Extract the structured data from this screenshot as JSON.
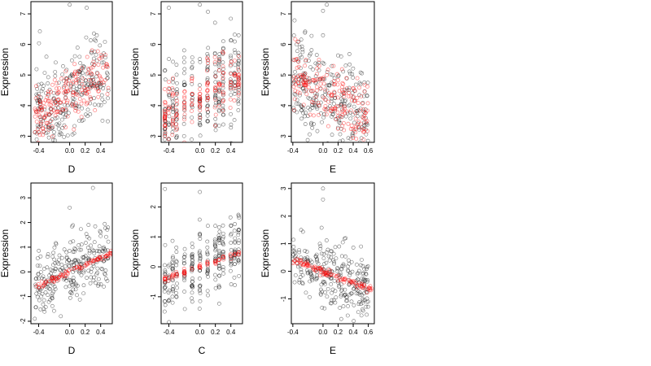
{
  "chart_data": [
    {
      "type": "scatter",
      "panel": "top-left",
      "xlabel": "D",
      "ylabel": "Expression",
      "xlim": [
        -0.5,
        0.55
      ],
      "ylim": [
        2.8,
        7.4
      ],
      "xticks": [
        -0.4,
        0.0,
        0.2,
        0.4
      ],
      "xtick_labels": [
        "-0.4",
        "0.0",
        "0.2",
        "0.4"
      ],
      "yticks": [
        3,
        4,
        5,
        6,
        7
      ],
      "ytick_labels": [
        "3",
        "4",
        "5",
        "6",
        "7"
      ],
      "series": [
        {
          "role": "observed",
          "color": "#000000",
          "x_range": [
            -0.45,
            0.5
          ],
          "pattern": "linear-spread",
          "slope": 1.4,
          "intercept": 4.3,
          "spread": 0.75,
          "count": 260,
          "seed": 11,
          "outliers": [
            [
              0.0,
              7.3
            ],
            [
              0.22,
              7.2
            ],
            [
              0.35,
              6.3
            ],
            [
              -0.3,
              5.6
            ]
          ]
        },
        {
          "role": "fitted",
          "color": "#ff0000",
          "x_range": [
            -0.45,
            0.5
          ],
          "pattern": "linear-spread",
          "slope": 1.4,
          "intercept": 4.3,
          "spread": 0.5,
          "count": 190,
          "seed": 12
        }
      ]
    },
    {
      "type": "scatter",
      "panel": "top-middle",
      "xlabel": "C",
      "ylabel": "Expression",
      "xlim": [
        -0.5,
        0.55
      ],
      "ylim": [
        2.8,
        7.4
      ],
      "xticks": [
        -0.4,
        0.0,
        0.2,
        0.4
      ],
      "xtick_labels": [
        "-0.4",
        "0.0",
        "0.2",
        "0.4"
      ],
      "yticks": [
        3,
        4,
        5,
        6,
        7
      ],
      "ytick_labels": [
        "3",
        "4",
        "5",
        "6",
        "7"
      ],
      "series": [
        {
          "role": "observed",
          "color": "#000000",
          "x_columns": [
            -0.45,
            -0.4,
            -0.35,
            -0.3,
            -0.2,
            -0.1,
            0.0,
            0.1,
            0.2,
            0.25,
            0.3,
            0.4,
            0.45,
            0.5
          ],
          "pattern": "columns",
          "slope": 1.2,
          "intercept": 4.3,
          "spread": 0.8,
          "count": 260,
          "seed": 21,
          "outliers": [
            [
              -0.4,
              7.2
            ],
            [
              0.0,
              7.3
            ],
            [
              0.5,
              6.3
            ]
          ]
        },
        {
          "role": "fitted",
          "color": "#ff0000",
          "x_columns": [
            -0.45,
            -0.4,
            -0.35,
            -0.3,
            -0.2,
            -0.1,
            0.0,
            0.1,
            0.2,
            0.25,
            0.3,
            0.4,
            0.45,
            0.5
          ],
          "pattern": "columns",
          "slope": 1.2,
          "intercept": 4.3,
          "spread": 0.45,
          "count": 170,
          "seed": 22
        }
      ]
    },
    {
      "type": "scatter",
      "panel": "top-right",
      "xlabel": "E",
      "ylabel": "Expression",
      "xlim": [
        -0.42,
        0.68
      ],
      "ylim": [
        2.8,
        7.4
      ],
      "xticks": [
        -0.4,
        0.0,
        0.2,
        0.4,
        0.6
      ],
      "xtick_labels": [
        "-0.4",
        "0.0",
        "0.2",
        "0.4",
        "0.6"
      ],
      "yticks": [
        3,
        4,
        5,
        6,
        7
      ],
      "ytick_labels": [
        "3",
        "4",
        "5",
        "6",
        "7"
      ],
      "series": [
        {
          "role": "observed",
          "color": "#000000",
          "x_range": [
            -0.4,
            0.6
          ],
          "pattern": "linear-spread",
          "slope": -1.3,
          "intercept": 4.4,
          "spread": 0.8,
          "count": 260,
          "seed": 31,
          "outliers": [
            [
              0.05,
              7.3
            ],
            [
              0.0,
              7.1
            ],
            [
              0.0,
              6.3
            ],
            [
              -0.35,
              6.0
            ]
          ]
        },
        {
          "role": "fitted",
          "color": "#ff0000",
          "x_range": [
            -0.4,
            0.6
          ],
          "pattern": "linear-spread",
          "slope": -1.3,
          "intercept": 4.4,
          "spread": 0.55,
          "count": 190,
          "seed": 32
        }
      ]
    },
    {
      "type": "scatter",
      "panel": "bottom-left",
      "xlabel": "D",
      "ylabel": "Expression",
      "xlim": [
        -0.5,
        0.55
      ],
      "ylim": [
        -2.1,
        3.6
      ],
      "xticks": [
        -0.4,
        0.0,
        0.2,
        0.4
      ],
      "xtick_labels": [
        "-0.4",
        "0.0",
        "0.2",
        "0.4"
      ],
      "yticks": [
        -2,
        -1,
        0,
        1,
        2,
        3
      ],
      "ytick_labels": [
        "-2",
        "-1",
        "0",
        "1",
        "2",
        "3"
      ],
      "series": [
        {
          "role": "observed",
          "color": "#000000",
          "x_range": [
            -0.45,
            0.5
          ],
          "pattern": "linear-spread",
          "slope": 1.4,
          "intercept": 0.0,
          "spread": 0.7,
          "count": 260,
          "seed": 41,
          "outliers": [
            [
              0.3,
              3.4
            ],
            [
              0.0,
              2.6
            ],
            [
              0.4,
              1.6
            ],
            [
              -0.45,
              -1.9
            ]
          ]
        },
        {
          "role": "fitted",
          "color": "#ff0000",
          "x_range": [
            -0.45,
            0.55
          ],
          "pattern": "line",
          "slope": 1.4,
          "intercept": 0.0,
          "spread": 0.06,
          "count": 90,
          "seed": 42
        }
      ]
    },
    {
      "type": "scatter",
      "panel": "bottom-middle",
      "xlabel": "C",
      "ylabel": "Expression",
      "xlim": [
        -0.5,
        0.55
      ],
      "ylim": [
        -1.9,
        2.8
      ],
      "xticks": [
        -0.4,
        0.0,
        0.2,
        0.4
      ],
      "xtick_labels": [
        "-0.4",
        "0.0",
        "0.2",
        "0.4"
      ],
      "yticks": [
        -1,
        0,
        1,
        2
      ],
      "ytick_labels": [
        "-1",
        "0",
        "1",
        "2"
      ],
      "series": [
        {
          "role": "observed",
          "color": "#000000",
          "x_columns": [
            -0.45,
            -0.4,
            -0.35,
            -0.3,
            -0.2,
            -0.1,
            0.0,
            0.1,
            0.2,
            0.25,
            0.3,
            0.4,
            0.45,
            0.5
          ],
          "pattern": "columns",
          "slope": 0.9,
          "intercept": 0.0,
          "spread": 0.6,
          "count": 260,
          "seed": 51,
          "outliers": [
            [
              -0.45,
              2.6
            ],
            [
              0.0,
              2.5
            ],
            [
              0.5,
              1.7
            ]
          ]
        },
        {
          "role": "fitted",
          "color": "#ff0000",
          "x_columns": [
            -0.45,
            -0.4,
            -0.35,
            -0.3,
            -0.2,
            -0.1,
            0.0,
            0.1,
            0.2,
            0.25,
            0.3,
            0.4,
            0.45,
            0.5
          ],
          "pattern": "line",
          "slope": 0.9,
          "intercept": 0.0,
          "spread": 0.05,
          "count": 70,
          "seed": 52
        }
      ]
    },
    {
      "type": "scatter",
      "panel": "bottom-right",
      "xlabel": "E",
      "ylabel": "Expression",
      "xlim": [
        -0.42,
        0.68
      ],
      "ylim": [
        -1.9,
        3.2
      ],
      "xticks": [
        -0.4,
        0.0,
        0.2,
        0.4,
        0.6
      ],
      "xtick_labels": [
        "-0.4",
        "0.0",
        "0.2",
        "0.4",
        "0.6"
      ],
      "yticks": [
        -1,
        0,
        1,
        2,
        3
      ],
      "ytick_labels": [
        "-1",
        "0",
        "1",
        "2",
        "3"
      ],
      "series": [
        {
          "role": "observed",
          "color": "#000000",
          "x_range": [
            -0.4,
            0.6
          ],
          "pattern": "linear-spread",
          "slope": -1.05,
          "intercept": 0.0,
          "spread": 0.6,
          "count": 260,
          "seed": 61,
          "outliers": [
            [
              0.0,
              3.0
            ],
            [
              0.0,
              2.6
            ],
            [
              0.3,
              1.2
            ],
            [
              0.6,
              -1.1
            ]
          ]
        },
        {
          "role": "fitted",
          "color": "#ff0000",
          "x_range": [
            -0.4,
            0.65
          ],
          "pattern": "line",
          "slope": -1.05,
          "intercept": 0.0,
          "spread": 0.06,
          "count": 110,
          "seed": 62
        }
      ]
    }
  ]
}
